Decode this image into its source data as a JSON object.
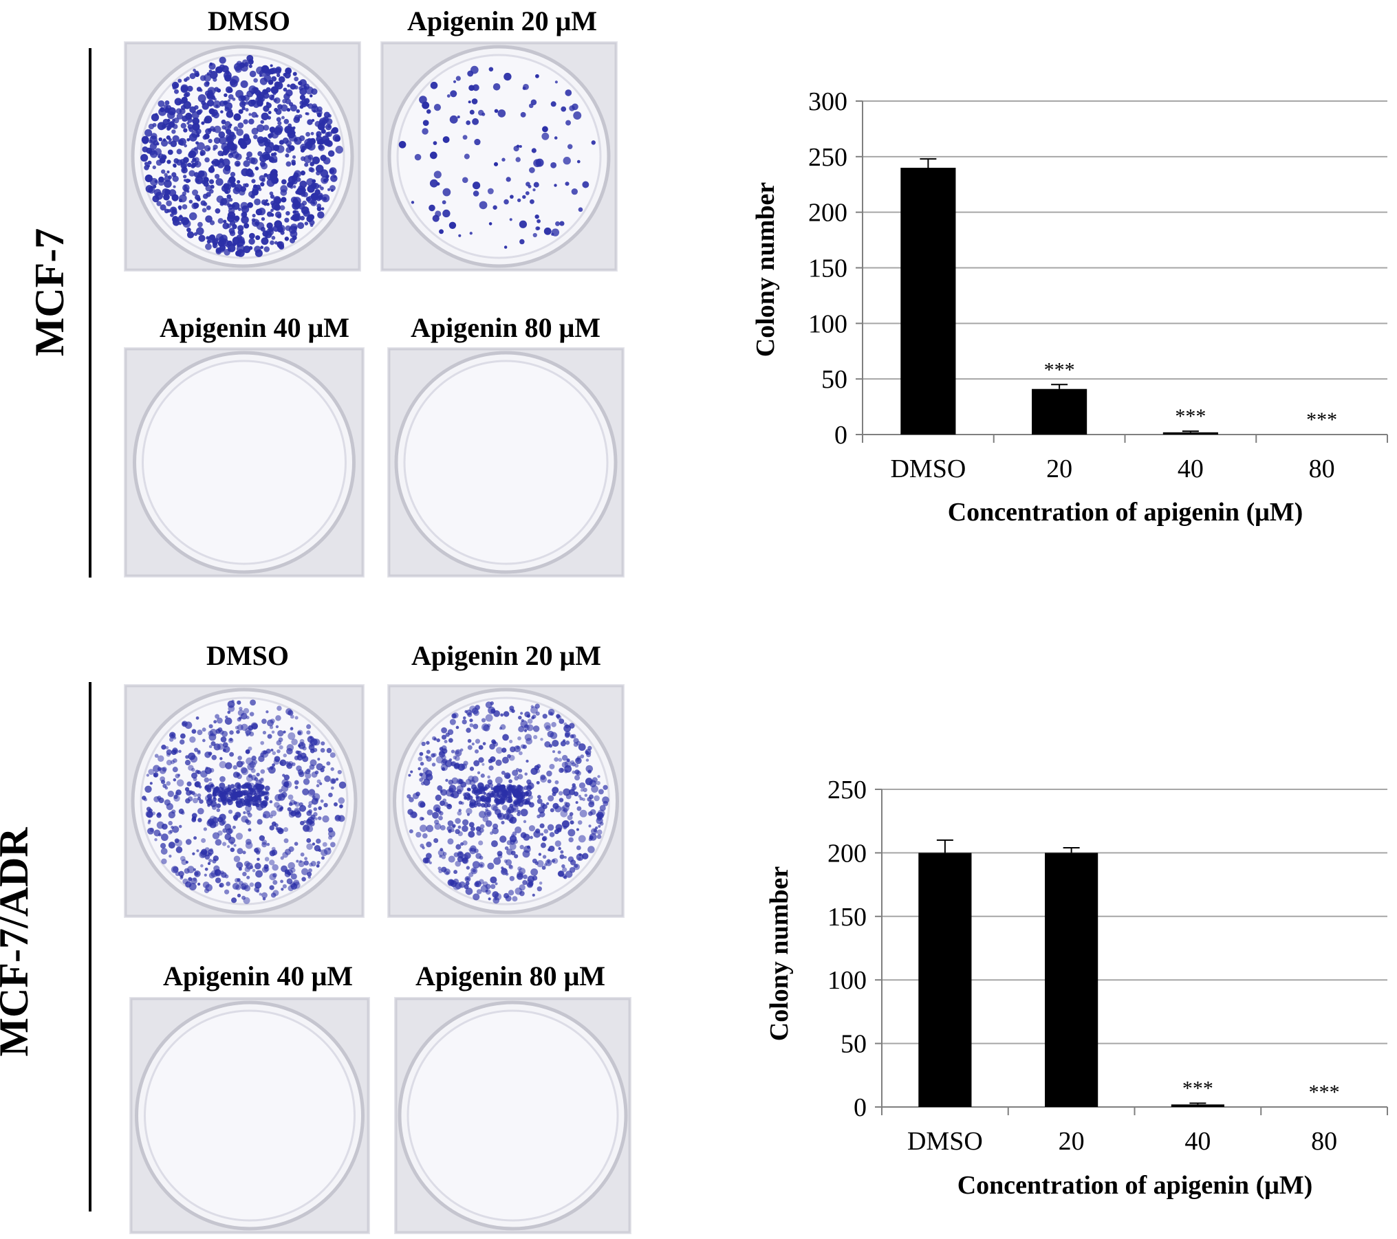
{
  "panels": [
    {
      "cell_line": "MCF-7",
      "dishes": [
        {
          "label": "DMSO",
          "colony_density": "very high"
        },
        {
          "label": "Apigenin  20 μM",
          "colony_density": "low"
        },
        {
          "label": "Apigenin  40 μM",
          "colony_density": "none"
        },
        {
          "label": "Apigenin  80 μM",
          "colony_density": "none"
        }
      ]
    },
    {
      "cell_line": "MCF-7/ADR",
      "dishes": [
        {
          "label": "DMSO",
          "colony_density": "high"
        },
        {
          "label": "Apigenin  20 μM",
          "colony_density": "high"
        },
        {
          "label": "Apigenin  40 μM",
          "colony_density": "none"
        },
        {
          "label": "Apigenin  80 μM",
          "colony_density": "none"
        }
      ]
    }
  ],
  "colors": {
    "bar": "#000000",
    "gridline": "#a6a6a6",
    "stain": "#2b2fa8",
    "plate": "#e9e9ef"
  },
  "chart_data": [
    {
      "type": "bar",
      "categories": [
        "DMSO",
        "20",
        "40",
        "80"
      ],
      "values": [
        240,
        41,
        2,
        0
      ],
      "error": [
        8,
        4,
        1,
        0
      ],
      "significance": [
        "",
        "***",
        "***",
        "***"
      ],
      "ylabel": "Colony number",
      "xlabel": "Concentration of apigenin (μM)",
      "ylim": [
        0,
        300
      ],
      "yticks": [
        0,
        50,
        100,
        150,
        200,
        250,
        300
      ],
      "grid": true
    },
    {
      "type": "bar",
      "categories": [
        "DMSO",
        "20",
        "40",
        "80"
      ],
      "values": [
        200,
        200,
        2,
        0
      ],
      "error": [
        10,
        4,
        1,
        0
      ],
      "significance": [
        "",
        "",
        "***",
        "***"
      ],
      "ylabel": "Colony number",
      "xlabel": "Concentration of apigenin (μM)",
      "ylim": [
        0,
        250
      ],
      "yticks": [
        0,
        50,
        100,
        150,
        200,
        250
      ],
      "grid": true
    }
  ]
}
